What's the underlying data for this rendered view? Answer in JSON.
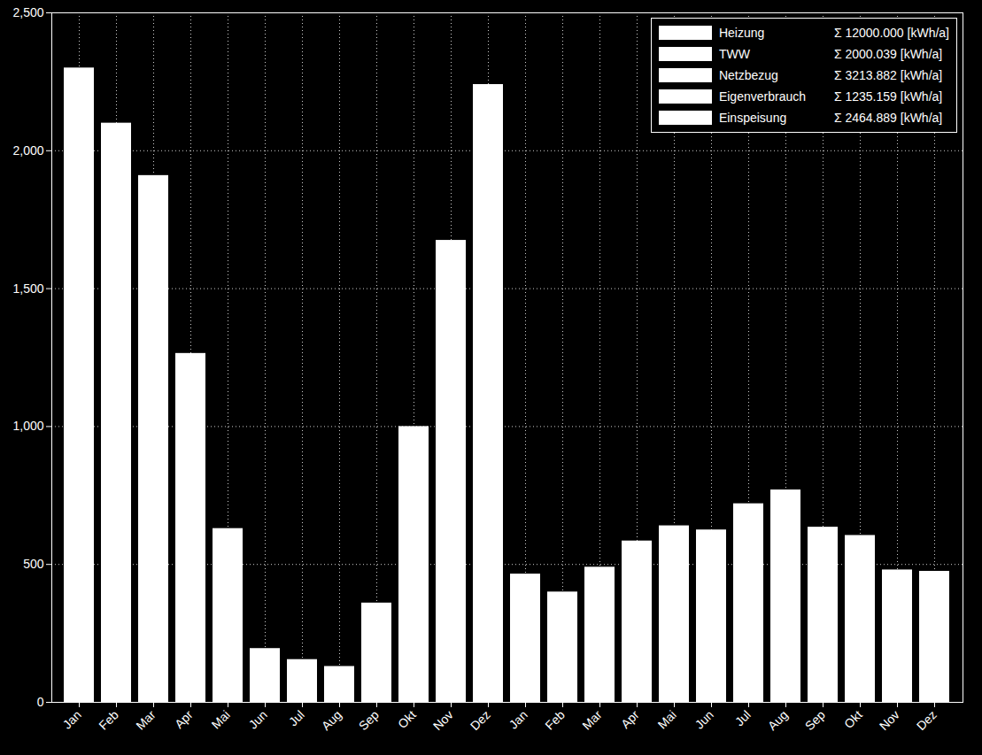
{
  "chart_data": {
    "type": "bar",
    "categories": [
      "Jan",
      "Feb",
      "Mar",
      "Apr",
      "Mai",
      "Jun",
      "Jul",
      "Aug",
      "Sep",
      "Okt",
      "Nov",
      "Dez",
      "Jan",
      "Feb",
      "Mar",
      "Apr",
      "Mai",
      "Jun",
      "Jul",
      "Aug",
      "Sep",
      "Okt",
      "Nov",
      "Dez"
    ],
    "values": [
      2300,
      2100,
      1910,
      1265,
      630,
      195,
      155,
      130,
      360,
      1000,
      1675,
      2240,
      465,
      400,
      490,
      585,
      640,
      625,
      720,
      770,
      635,
      605,
      480,
      475
    ],
    "color": "#ffffff",
    "ylim": [
      0,
      2500
    ],
    "yticks": [
      0,
      500,
      1000,
      1500,
      2000,
      2500
    ],
    "grid": true,
    "legend": "upper right",
    "legend_items": [
      {
        "name": "Heizung",
        "color": "#ffffff",
        "total": {
          "value": 12000,
          "label": "Σ 12000.000 [kWh/a]"
        }
      },
      {
        "name": "TWW",
        "color": "#ffffff",
        "total": {
          "value": 2000.039,
          "label": "Σ 2000.039 [kWh/a]"
        }
      },
      {
        "name": "Netzbezug",
        "color": "#ffffff",
        "total": {
          "value": 3213.882,
          "label": "Σ 3213.882 [kWh/a]"
        }
      },
      {
        "name": "Eigenverbrauch",
        "color": "#ffffff",
        "total": {
          "value": 1235.159,
          "label": "Σ 1235.159 [kWh/a]"
        }
      },
      {
        "name": "Einspeisung",
        "color": "#ffffff",
        "total": {
          "value": 2464.889,
          "label": "Σ 2464.889 [kWh/a]"
        }
      }
    ]
  }
}
